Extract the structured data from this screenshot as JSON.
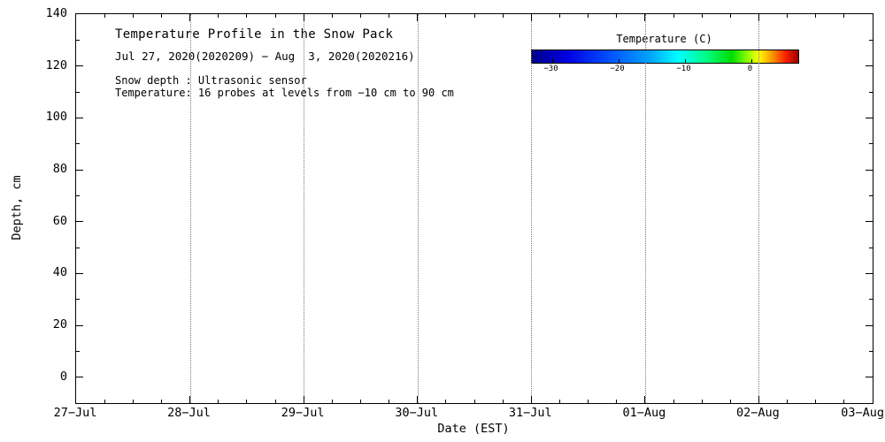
{
  "chart_data": {
    "type": "heatmap",
    "title": "Temperature Profile in the Snow Pack",
    "subtitle": "Jul 27, 2020(2020209) − Aug  3, 2020(2020216)",
    "annotations": [
      "Snow depth : Ultrasonic sensor",
      "Temperature: 16 probes at levels from −10 cm to 90 cm"
    ],
    "xlabel": "Date (EST)",
    "ylabel": "Depth, cm",
    "x_tick_labels": [
      "27−Jul",
      "28−Jul",
      "29−Jul",
      "30−Jul",
      "31−Jul",
      "01−Aug",
      "02−Aug",
      "03−Aug"
    ],
    "x_minor_ticks_per_interval": 3,
    "y_ticks": [
      0,
      20,
      40,
      60,
      80,
      100,
      120,
      140
    ],
    "y_minor_step": 10,
    "ylim": [
      -10,
      140
    ],
    "grid": {
      "vertical_dotted": true,
      "horizontal": false
    },
    "series": [],
    "colors": {
      "background": "#FFFFFF",
      "axis": "#000000",
      "text": "#000000",
      "grid": "#777777"
    },
    "legend_position": "top-right",
    "colorbar": {
      "label": "Temperature (C)",
      "range": [
        -33,
        7
      ],
      "tick_values": [
        -30,
        -20,
        -10,
        0
      ],
      "tick_labels": [
        "−30",
        "−20",
        "−10",
        "0"
      ],
      "gradient": [
        {
          "pos": 0,
          "color": "#00008B"
        },
        {
          "pos": 13,
          "color": "#0000E0"
        },
        {
          "pos": 30,
          "color": "#0055FF"
        },
        {
          "pos": 45,
          "color": "#00AAFF"
        },
        {
          "pos": 55,
          "color": "#00FFFF"
        },
        {
          "pos": 65,
          "color": "#00FF88"
        },
        {
          "pos": 75,
          "color": "#00DD00"
        },
        {
          "pos": 82,
          "color": "#AAFF00"
        },
        {
          "pos": 85,
          "color": "#FFFF00"
        },
        {
          "pos": 90,
          "color": "#FF9900"
        },
        {
          "pos": 95,
          "color": "#FF2200"
        },
        {
          "pos": 100,
          "color": "#990000"
        }
      ]
    }
  }
}
